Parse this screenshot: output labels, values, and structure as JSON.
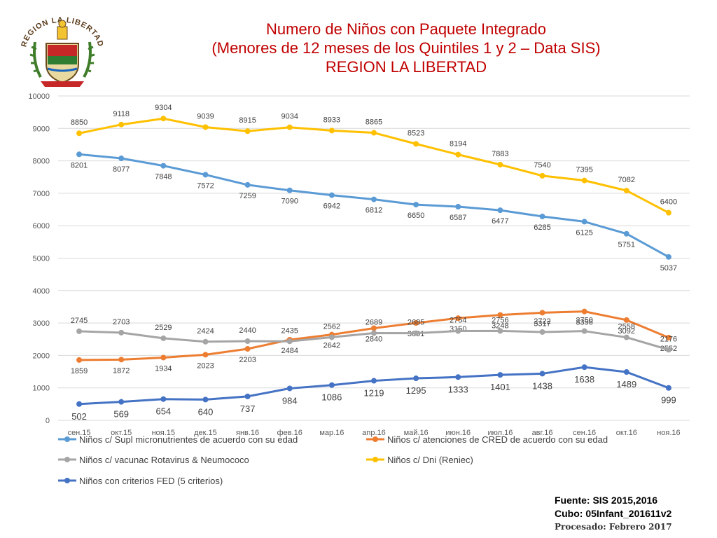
{
  "title_lines": [
    "Numero de Niños con Paquete Integrado",
    "(Menores de 12 meses de los Quintiles 1 y 2 – Data SIS)",
    "REGION LA LIBERTAD"
  ],
  "logo": {
    "text": "REGION LA LIBERTAD"
  },
  "source": {
    "line1": "Fuente: SIS 2015,2016",
    "line2": "Cubo: 05Infant_201611v2",
    "line3": "Procesado: Febrero 2017"
  },
  "colors": {
    "title": "#c00000",
    "supl": "#5b9bd5",
    "cred": "#ed7d31",
    "vacunac": "#a5a5a5",
    "dni": "#ffc000",
    "fed": "#4472c4"
  },
  "chart_data": {
    "type": "line",
    "title": "Numero de Niños con Paquete Integrado (Menores de 12 meses de los Quintiles 1 y 2 – Data SIS) REGION LA LIBERTAD",
    "xlabel": "",
    "ylabel": "",
    "ylim": [
      0,
      10000
    ],
    "yticks": [
      "0",
      "1000",
      "2000",
      "3000",
      "4000",
      "5000",
      "6000",
      "7000",
      "8000",
      "9000",
      "10000"
    ],
    "grid": true,
    "legend": "bottom",
    "categories": [
      "сен.15",
      "окт.15",
      "ноя.15",
      "дек.15",
      "янв.16",
      "фев.16",
      "мар.16",
      "апр.16",
      "май.16",
      "июн.16",
      "июл.16",
      "авг.16",
      "сен.16",
      "окт.16",
      "ноя.16"
    ],
    "series": [
      {
        "key": "supl",
        "name": "Niños c/ Supl micronutrientes de acuerdo con su edad",
        "values": [
          8201,
          8077,
          7848,
          7572,
          7259,
          7090,
          6942,
          6812,
          6650,
          6587,
          6477,
          6285,
          6125,
          5751,
          5037
        ]
      },
      {
        "key": "cred",
        "name": "Niños c/ atenciones de CRED de acuerdo con su edad",
        "values": [
          1859,
          1872,
          1934,
          2023,
          2203,
          2484,
          2642,
          2840,
          3001,
          3150,
          3248,
          3317,
          3356,
          3092,
          2552
        ]
      },
      {
        "key": "vacunac",
        "name": "Niños c/ vacunac Rotavirus & Neumococo",
        "values": [
          2745,
          2703,
          2529,
          2424,
          2440,
          2435,
          2562,
          2689,
          2685,
          2754,
          2756,
          2722,
          2750,
          2558,
          2176
        ]
      },
      {
        "key": "dni",
        "name": "Niños c/ Dni (Reniec)",
        "values": [
          8850,
          9118,
          9304,
          9039,
          8915,
          9034,
          8933,
          8865,
          8523,
          8194,
          7883,
          7540,
          7395,
          7082,
          6400
        ]
      },
      {
        "key": "fed",
        "name": "Niños con criterios FED (5 criterios)",
        "values": [
          502,
          569,
          654,
          640,
          737,
          984,
          1086,
          1219,
          1295,
          1333,
          1401,
          1438,
          1638,
          1489,
          999
        ]
      }
    ]
  }
}
